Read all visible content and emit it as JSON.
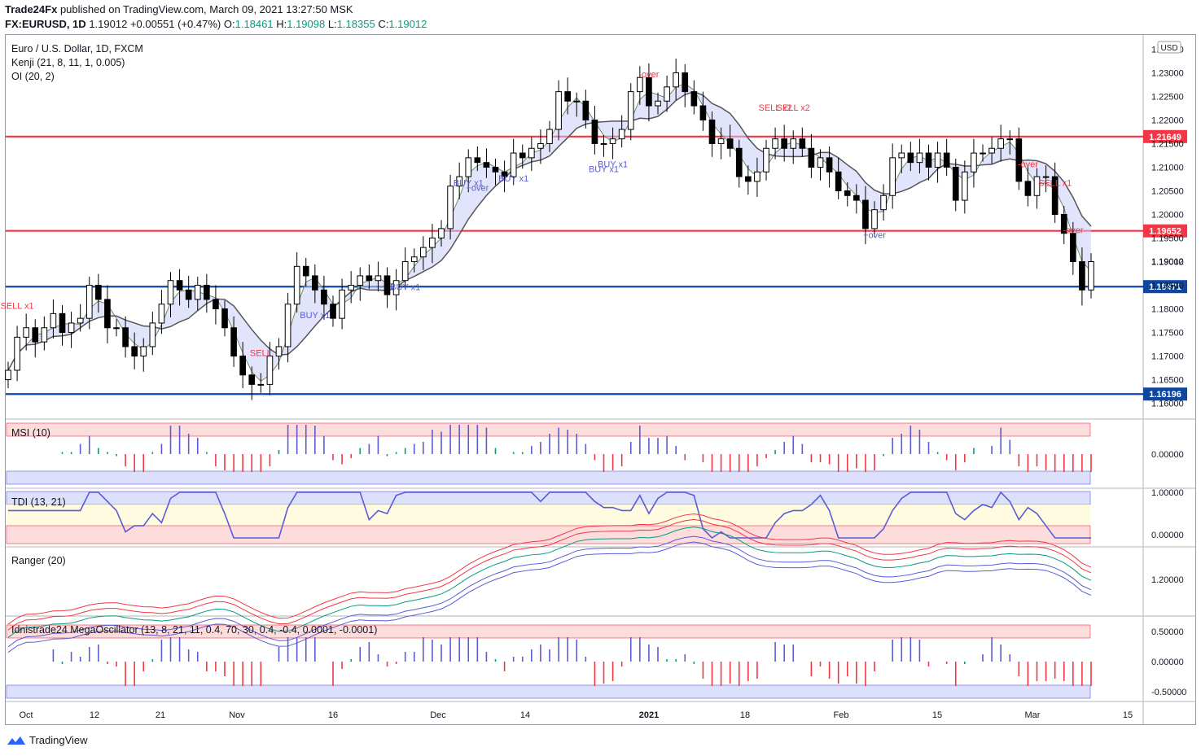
{
  "header": {
    "publisher": "Trade24Fx",
    "published_text": "published on TradingView.com, March 09, 2021 13:27:50 MSK",
    "symbol": "FX:EURUSD, 1D",
    "last": "1.19012",
    "change": "+0.00551 (+0.47%)",
    "o_label": "O:",
    "o": "1.18461",
    "h_label": "H:",
    "h": "1.19098",
    "l_label": "L:",
    "l": "1.18355",
    "c_label": "C:",
    "c": "1.19012"
  },
  "legend": {
    "title": "Euro / U.S. Dollar, 1D, FXCM",
    "kenji": "Kenji (21, 8, 11, 1, 0.005)",
    "oi": "OI (20, 2)"
  },
  "panes": {
    "msi": "MSI (10)",
    "tdi": "TDI (13, 21)",
    "ranger": "Ranger (20)",
    "mega": "Idnistrade24 MegaOscillator (13, 8, 21, 11, 0.4, 70, 30, 0.4, -0.4, 0.0001, -0.0001)"
  },
  "currency": "USD",
  "footer": {
    "brand": "TradingView"
  },
  "colors": {
    "up": "#ffffff",
    "down": "#000000",
    "red_line": "#f23645",
    "blue_line": "#0d47a1",
    "buy": "#5b5bd6",
    "sell": "#f23645",
    "green": "#089981"
  },
  "chart_data": {
    "type": "candlestick",
    "title": "Euro / U.S. Dollar, 1D, FXCM",
    "ylim": [
      1.157,
      1.238
    ],
    "price_ticks": [
      "1.23500",
      "1.23000",
      "1.22500",
      "1.22000",
      "1.21500",
      "1.21000",
      "1.20500",
      "1.20000",
      "1.19500",
      "1.19000",
      "1.18500",
      "1.18000",
      "1.17500",
      "1.17000",
      "1.16500",
      "1.16000"
    ],
    "x_ticks": [
      "Oct",
      "12",
      "21",
      "Nov",
      "16",
      "Dec",
      "14",
      "2021",
      "18",
      "Feb",
      "15",
      "Mar",
      "15"
    ],
    "horizontal_levels": [
      {
        "value": 1.21649,
        "label": "1.21649",
        "color": "#f23645"
      },
      {
        "value": 1.19652,
        "label": "1.19652",
        "color": "#f23645"
      },
      {
        "value": 1.18471,
        "label": "1.18471",
        "color": "#0d47a1"
      },
      {
        "value": 1.16196,
        "label": "1.16196",
        "color": "#0d47a1"
      }
    ],
    "last_price": {
      "value": 1.19012,
      "label": "1.19012"
    },
    "closes": [
      1.167,
      1.174,
      1.176,
      1.173,
      1.176,
      1.179,
      1.175,
      1.177,
      1.178,
      1.185,
      1.182,
      1.176,
      1.176,
      1.172,
      1.17,
      1.172,
      1.177,
      1.181,
      1.186,
      1.184,
      1.182,
      1.185,
      1.182,
      1.18,
      1.176,
      1.17,
      1.166,
      1.164,
      1.164,
      1.17,
      1.172,
      1.181,
      1.189,
      1.187,
      1.184,
      1.181,
      1.178,
      1.184,
      1.185,
      1.187,
      1.186,
      1.187,
      1.183,
      1.186,
      1.19,
      1.191,
      1.193,
      1.195,
      1.197,
      1.206,
      1.208,
      1.212,
      1.211,
      1.21,
      1.209,
      1.208,
      1.213,
      1.212,
      1.214,
      1.215,
      1.218,
      1.226,
      1.224,
      1.224,
      1.22,
      1.215,
      1.215,
      1.216,
      1.218,
      1.226,
      1.229,
      1.223,
      1.224,
      1.227,
      1.23,
      1.226,
      1.223,
      1.22,
      1.215,
      1.216,
      1.214,
      1.208,
      1.207,
      1.209,
      1.214,
      1.216,
      1.214,
      1.216,
      1.214,
      1.21,
      1.212,
      1.209,
      1.205,
      1.204,
      1.203,
      1.197,
      1.201,
      1.204,
      1.212,
      1.213,
      1.211,
      1.213,
      1.21,
      1.213,
      1.21,
      1.203,
      1.209,
      1.213,
      1.213,
      1.214,
      1.216,
      1.216,
      1.207,
      1.204,
      1.208,
      1.208,
      1.2,
      1.196,
      1.19,
      1.184,
      1.19
    ],
    "signals": [
      "SELL x1",
      "SELL",
      "BUY x1",
      "BUY x1",
      "BUY x1",
      "+over",
      "BUY x1",
      "BUY x1",
      "BUY x1",
      "-over",
      "SELL x2",
      "SELL x2",
      "+over",
      "-over",
      "SELL x1",
      "-over"
    ],
    "msi": {
      "name": "MSI (10)",
      "tick": "0.00000"
    },
    "tdi": {
      "name": "TDI (13, 21)",
      "ticks": [
        "1.00000",
        "0.00000"
      ]
    },
    "ranger": {
      "name": "Ranger (20)",
      "tick": "1.20000"
    },
    "mega": {
      "name": "Idnistrade24 MegaOscillator",
      "ticks": [
        "0.50000",
        "0.00000",
        "-0.50000"
      ]
    }
  }
}
